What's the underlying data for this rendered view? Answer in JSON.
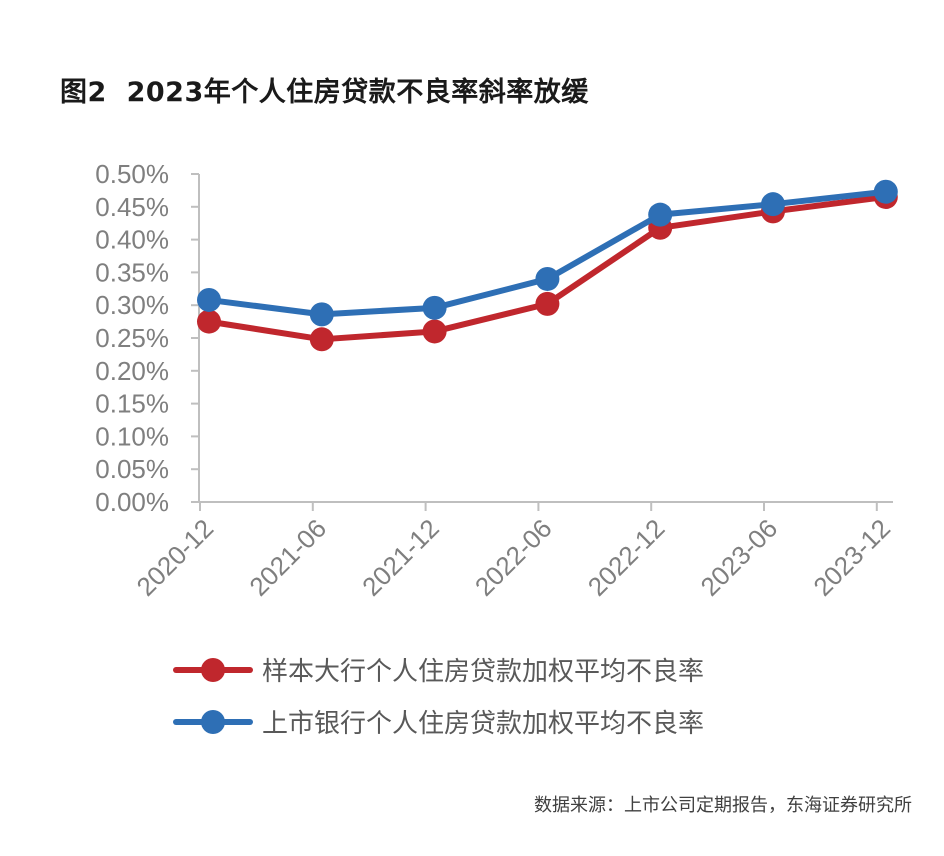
{
  "title": "图2  2023年个人住房贷款不良率斜率放缓",
  "source": "数据来源：上市公司定期报告，东海证券研究所",
  "chart_data": {
    "type": "line",
    "title": "图2  2023年个人住房贷款不良率斜率放缓",
    "xlabel": "",
    "ylabel": "",
    "categories": [
      "2020-12",
      "2021-06",
      "2021-12",
      "2022-06",
      "2022-12",
      "2023-06",
      "2023-12"
    ],
    "y_ticks": [
      "0.00%",
      "0.05%",
      "0.10%",
      "0.15%",
      "0.20%",
      "0.25%",
      "0.30%",
      "0.35%",
      "0.40%",
      "0.45%",
      "0.50%"
    ],
    "ylim": [
      0,
      0.5
    ],
    "y_unit": "%",
    "grid": false,
    "legend_position": "bottom",
    "series": [
      {
        "name": "样本大行个人住房贷款加权平均不良率",
        "color": "#c0272d",
        "values": [
          0.275,
          0.248,
          0.26,
          0.302,
          0.418,
          0.443,
          0.465
        ]
      },
      {
        "name": "上市银行个人住房贷款加权平均不良率",
        "color": "#2e6fb5",
        "values": [
          0.308,
          0.286,
          0.296,
          0.34,
          0.438,
          0.454,
          0.473
        ]
      }
    ]
  }
}
